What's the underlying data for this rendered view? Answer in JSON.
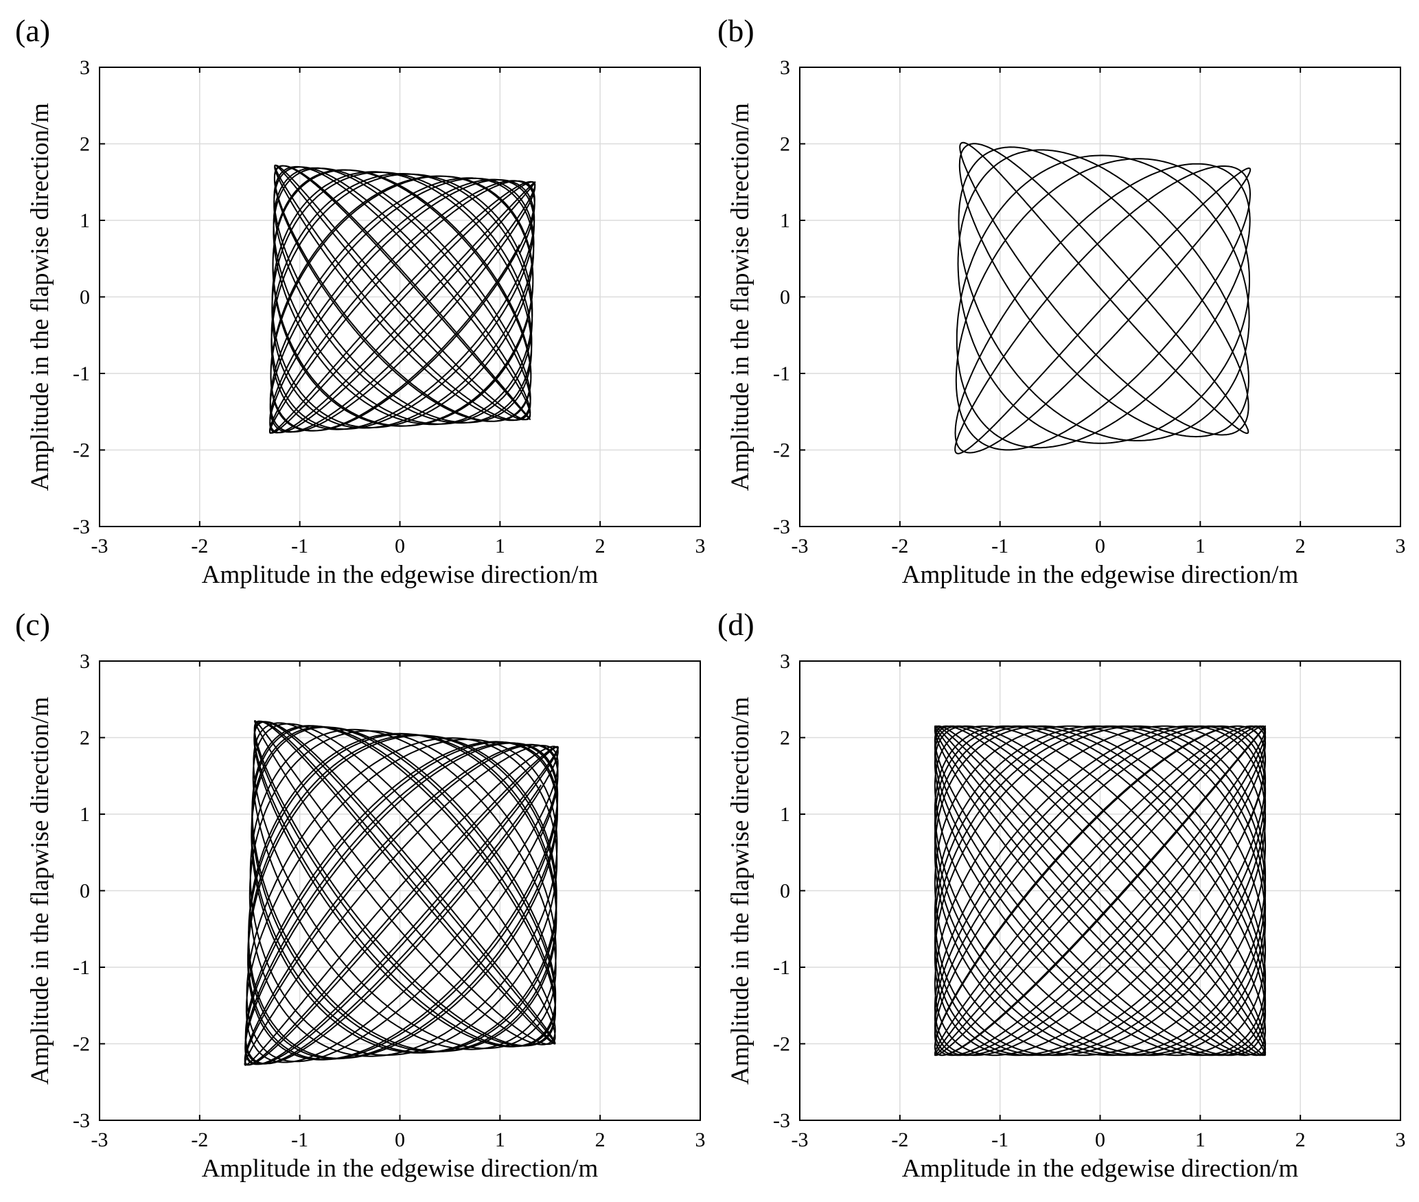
{
  "figure": {
    "panels": [
      "a",
      "b",
      "c",
      "d"
    ]
  },
  "chart_data": [
    {
      "panel_label": "(a)",
      "type": "line",
      "xlabel": "Amplitude in the edgewise direction/m",
      "ylabel": "Amplitude in the flapwise direction/m",
      "xlim": [
        -3,
        3
      ],
      "ylim": [
        -3,
        3
      ],
      "xticks": [
        "-3",
        "-2",
        "-1",
        "0",
        "1",
        "2",
        "3"
      ],
      "yticks": [
        "-3",
        "-2",
        "-1",
        "0",
        "1",
        "2",
        "3"
      ],
      "grid": true,
      "line_color": "#000000",
      "trajectory": {
        "x_left": [
          -1.25,
          -1.3
        ],
        "x_right": [
          1.35,
          1.3
        ],
        "y_top": [
          1.72,
          1.5
        ],
        "y_bottom": [
          -1.78,
          -1.6
        ],
        "freq_x": 1.0,
        "freq_y": 1.137,
        "cycles": 22
      }
    },
    {
      "panel_label": "(b)",
      "type": "line",
      "xlabel": "Amplitude in the edgewise direction/m",
      "ylabel": "Amplitude in the flapwise direction/m",
      "xlim": [
        -3,
        3
      ],
      "ylim": [
        -3,
        3
      ],
      "xticks": [
        "-3",
        "-2",
        "-1",
        "0",
        "1",
        "2",
        "3"
      ],
      "yticks": [
        "-3",
        "-2",
        "-1",
        "0",
        "1",
        "2",
        "3"
      ],
      "grid": true,
      "line_color": "#000000",
      "trajectory": {
        "x_left": [
          -1.4,
          -1.45
        ],
        "x_right": [
          1.5,
          1.48
        ],
        "y_top": [
          2.02,
          1.68
        ],
        "y_bottom": [
          -2.05,
          -1.78
        ],
        "freq_x": 1.0,
        "freq_y": 1.125,
        "cycles": 24
      }
    },
    {
      "panel_label": "(c)",
      "type": "line",
      "xlabel": "Amplitude in the edgewise direction/m",
      "ylabel": "Amplitude in the flapwise direction/m",
      "xlim": [
        -3,
        3
      ],
      "ylim": [
        -3,
        3
      ],
      "xticks": [
        "-3",
        "-2",
        "-1",
        "0",
        "1",
        "2",
        "3"
      ],
      "yticks": [
        "-3",
        "-2",
        "-1",
        "0",
        "1",
        "2",
        "3"
      ],
      "grid": true,
      "line_color": "#000000",
      "trajectory": {
        "x_left": [
          -1.45,
          -1.55
        ],
        "x_right": [
          1.58,
          1.55
        ],
        "y_top": [
          2.22,
          1.88
        ],
        "y_bottom": [
          -2.28,
          -2.0
        ],
        "freq_x": 1.0,
        "freq_y": 1.118,
        "cycles": 26
      }
    },
    {
      "panel_label": "(d)",
      "type": "line",
      "xlabel": "Amplitude in the edgewise direction/m",
      "ylabel": "Amplitude in the flapwise direction/m",
      "xlim": [
        -3,
        3
      ],
      "ylim": [
        -3,
        3
      ],
      "xticks": [
        "-3",
        "-2",
        "-1",
        "0",
        "1",
        "2",
        "3"
      ],
      "yticks": [
        "-3",
        "-2",
        "-1",
        "0",
        "1",
        "2",
        "3"
      ],
      "grid": true,
      "line_color": "#000000",
      "trajectory": {
        "x_left": [
          -1.65,
          -1.65
        ],
        "x_right": [
          1.65,
          1.65
        ],
        "y_top": [
          2.15,
          2.15
        ],
        "y_bottom": [
          -2.15,
          -2.15
        ],
        "freq_x": 1.0,
        "freq_y": 1.103,
        "cycles": 26
      }
    }
  ]
}
